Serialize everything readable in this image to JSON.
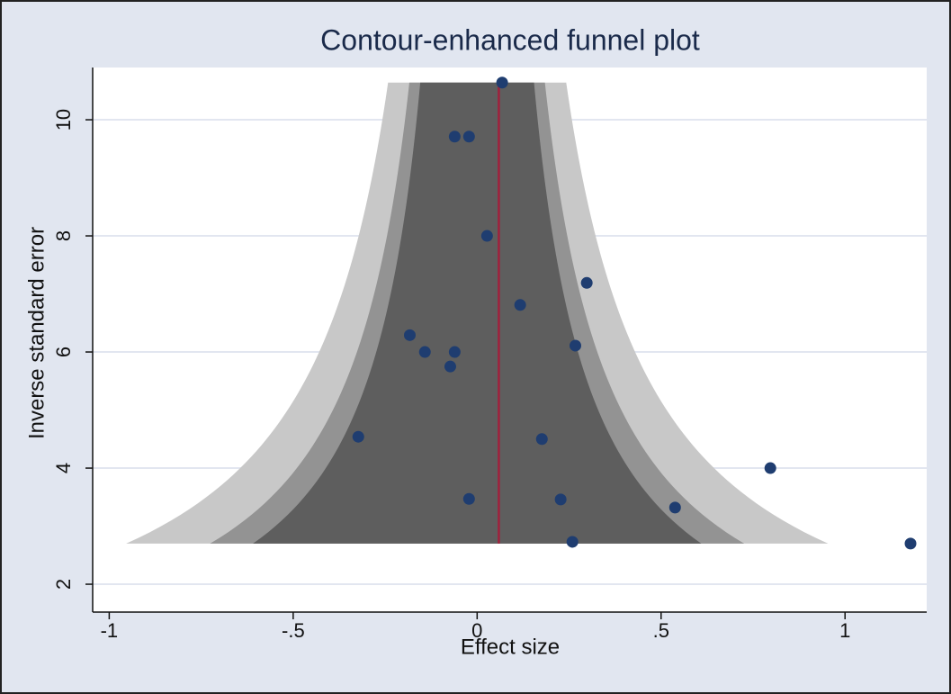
{
  "chart_data": {
    "type": "funnel",
    "title": "Contour-enhanced funnel plot",
    "x_label": "Effect size",
    "y_label": "Inverse standard error",
    "x": [
      0.068,
      -0.061,
      -0.022,
      0.027,
      0.298,
      0.117,
      -0.183,
      -0.142,
      -0.061,
      0.267,
      -0.073,
      -0.323,
      0.176,
      0.797,
      -0.022,
      0.227,
      0.538,
      0.259,
      1.178
    ],
    "y": [
      10.64,
      9.71,
      9.71,
      8.0,
      7.19,
      6.81,
      6.29,
      6.0,
      6.0,
      6.11,
      5.75,
      4.54,
      4.5,
      4.0,
      3.47,
      3.46,
      3.32,
      2.73,
      2.7
    ],
    "color": "#1f3d70",
    "pooled_effect": 0.059,
    "pooled_color": "#a0203c",
    "precision_range": [
      2.7,
      10.64
    ],
    "contours": [
      {
        "z": 2.576,
        "color": "#c8c8c8"
      },
      {
        "z": 1.96,
        "color": "#939393"
      },
      {
        "z": 1.645,
        "color": "#5e5e5e"
      }
    ],
    "xlim": [
      -1.045,
      1.222
    ],
    "ylim": [
      1.52,
      10.9
    ],
    "xticks": [
      -1,
      {
        "value": -0.5,
        "label": "-.5"
      },
      0,
      {
        "value": 0.5,
        "label": ".5"
      },
      1
    ],
    "yticks": [
      2,
      4,
      6,
      8,
      10
    ],
    "grid": true
  }
}
